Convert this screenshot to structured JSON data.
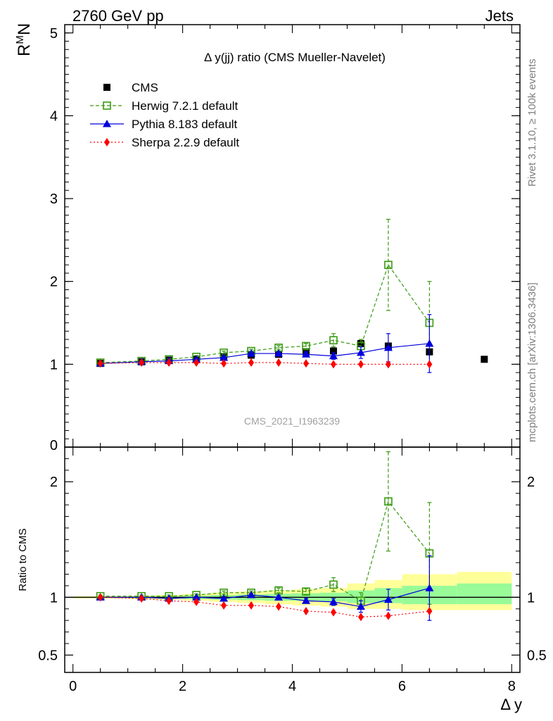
{
  "header": {
    "left_label": "2760 GeV pp",
    "right_label": "Jets",
    "side_label_rivet": "Rivet 3.1.10, ≥ 100k events",
    "side_label_mcplots": "mcplots.cern.ch [arXiv:1306.3436]",
    "watermark": "CMS_2021_I1963239"
  },
  "colors": {
    "cms": "#000000",
    "herwig": "#3a9a12",
    "pythia": "#0000dd",
    "sherpa": "#ff0000",
    "band_inner": "#98fb98",
    "band_outer": "#ffff99"
  },
  "chart_data": [
    {
      "type": "scatter",
      "title": "Δ y(jj) ratio (CMS Mueller-Navelet)",
      "ylabel_main": "R",
      "ylabel_sup": "M",
      "ylabel_tail": "N",
      "xlabel": "Δ y",
      "xlim": [
        -0.15,
        8.15
      ],
      "ylim": [
        0,
        5.1
      ],
      "yticks": [
        1,
        2,
        3,
        4,
        5
      ],
      "ytick_labels": [
        "1",
        "2",
        "3",
        "4",
        "5"
      ],
      "zero_label": "0",
      "legend": [
        {
          "key": "cms",
          "label": "CMS"
        },
        {
          "key": "herwig",
          "label": "Herwig 7.2.1 default"
        },
        {
          "key": "pythia",
          "label": "Pythia 8.183 default"
        },
        {
          "key": "sherpa",
          "label": "Sherpa 2.2.9 default"
        }
      ],
      "series": [
        {
          "key": "cms",
          "name": "CMS",
          "x": [
            0.5,
            1.25,
            1.75,
            2.25,
            2.75,
            3.25,
            3.75,
            4.25,
            4.75,
            5.25,
            5.75,
            6.5,
            7.5
          ],
          "y": [
            1.01,
            1.03,
            1.05,
            1.06,
            1.09,
            1.11,
            1.12,
            1.15,
            1.16,
            1.25,
            1.22,
            1.15,
            1.06
          ]
        },
        {
          "key": "herwig",
          "name": "Herwig 7.2.1 default",
          "x": [
            0.5,
            1.25,
            1.75,
            2.25,
            2.75,
            3.25,
            3.75,
            4.25,
            4.75,
            5.25,
            5.75,
            6.5
          ],
          "y": [
            1.02,
            1.04,
            1.06,
            1.09,
            1.14,
            1.16,
            1.2,
            1.22,
            1.29,
            1.22,
            2.2,
            1.5
          ],
          "err": [
            0.01,
            0.01,
            0.01,
            0.015,
            0.02,
            0.02,
            0.025,
            0.03,
            0.08,
            0.08,
            0.55,
            0.5
          ]
        },
        {
          "key": "pythia",
          "name": "Pythia 8.183 default",
          "x": [
            0.5,
            1.25,
            1.75,
            2.25,
            2.75,
            3.25,
            3.75,
            4.25,
            4.75,
            5.25,
            5.75,
            6.5
          ],
          "y": [
            1.01,
            1.03,
            1.04,
            1.06,
            1.08,
            1.13,
            1.13,
            1.12,
            1.1,
            1.14,
            1.2,
            1.25
          ],
          "err": [
            0.01,
            0.01,
            0.01,
            0.01,
            0.015,
            0.02,
            0.02,
            0.03,
            0.04,
            0.07,
            0.17,
            0.35
          ]
        },
        {
          "key": "sherpa",
          "name": "Sherpa 2.2.9 default",
          "x": [
            0.5,
            1.25,
            1.75,
            2.25,
            2.75,
            3.25,
            3.75,
            4.25,
            4.75,
            5.25,
            5.75,
            6.5
          ],
          "y": [
            1.01,
            1.02,
            1.02,
            1.02,
            1.01,
            1.02,
            1.02,
            1.01,
            1.0,
            1.0,
            1.0,
            1.0
          ]
        }
      ]
    },
    {
      "type": "scatter",
      "title": "",
      "ylabel": "Ratio to CMS",
      "xlabel": "Δ y",
      "xlim": [
        -0.15,
        8.15
      ],
      "ylim": [
        0.35,
        2.3
      ],
      "yticks": [
        0.5,
        1,
        2
      ],
      "ytick_labels": [
        "0.5",
        "1",
        "2"
      ],
      "xticks": [
        0,
        2,
        4,
        6,
        8
      ],
      "xtick_labels": [
        "0",
        "2",
        "4",
        "6",
        "8"
      ],
      "bands": {
        "edges": [
          0.0,
          1.0,
          1.5,
          2.0,
          2.5,
          3.0,
          3.5,
          4.0,
          4.5,
          5.0,
          5.5,
          6.0,
          7.0,
          8.0
        ],
        "inner_lo": [
          0.995,
          0.993,
          0.99,
          0.985,
          0.98,
          0.975,
          0.97,
          0.97,
          0.965,
          0.95,
          0.95,
          0.94,
          0.94
        ],
        "inner_hi": [
          1.005,
          1.007,
          1.01,
          1.015,
          1.02,
          1.025,
          1.03,
          1.035,
          1.04,
          1.06,
          1.08,
          1.1,
          1.12
        ],
        "outer_lo": [
          0.99,
          0.985,
          0.98,
          0.97,
          0.96,
          0.95,
          0.94,
          0.93,
          0.92,
          0.9,
          0.9,
          0.89,
          0.89
        ],
        "outer_hi": [
          1.01,
          1.015,
          1.02,
          1.03,
          1.04,
          1.05,
          1.06,
          1.07,
          1.08,
          1.12,
          1.15,
          1.2,
          1.22
        ]
      },
      "series": [
        {
          "key": "herwig",
          "name": "Herwig 7.2.1 default",
          "x": [
            0.5,
            1.25,
            1.75,
            2.25,
            2.75,
            3.25,
            3.75,
            4.25,
            4.75,
            5.25,
            5.75,
            6.5
          ],
          "y": [
            1.01,
            1.01,
            1.01,
            1.02,
            1.04,
            1.04,
            1.06,
            1.05,
            1.11,
            0.97,
            1.83,
            1.38
          ],
          "err": [
            0.01,
            0.01,
            0.01,
            0.01,
            0.015,
            0.015,
            0.02,
            0.025,
            0.06,
            0.07,
            0.43,
            0.44
          ]
        },
        {
          "key": "pythia",
          "name": "Pythia 8.183 default",
          "x": [
            0.5,
            1.25,
            1.75,
            2.25,
            2.75,
            3.25,
            3.75,
            4.25,
            4.75,
            5.25,
            5.75,
            6.5
          ],
          "y": [
            1.0,
            1.0,
            0.99,
            1.0,
            0.99,
            1.02,
            1.0,
            0.97,
            0.96,
            0.92,
            0.98,
            1.08
          ],
          "err": [
            0.005,
            0.005,
            0.005,
            0.005,
            0.01,
            0.01,
            0.015,
            0.02,
            0.03,
            0.05,
            0.09,
            0.28
          ]
        },
        {
          "key": "sherpa",
          "name": "Sherpa 2.2.9 default",
          "x": [
            0.5,
            1.25,
            1.75,
            2.25,
            2.75,
            3.25,
            3.75,
            4.25,
            4.75,
            5.25,
            5.75,
            6.5
          ],
          "y": [
            1.0,
            0.99,
            0.97,
            0.96,
            0.93,
            0.93,
            0.92,
            0.88,
            0.87,
            0.83,
            0.84,
            0.88
          ]
        }
      ]
    }
  ]
}
